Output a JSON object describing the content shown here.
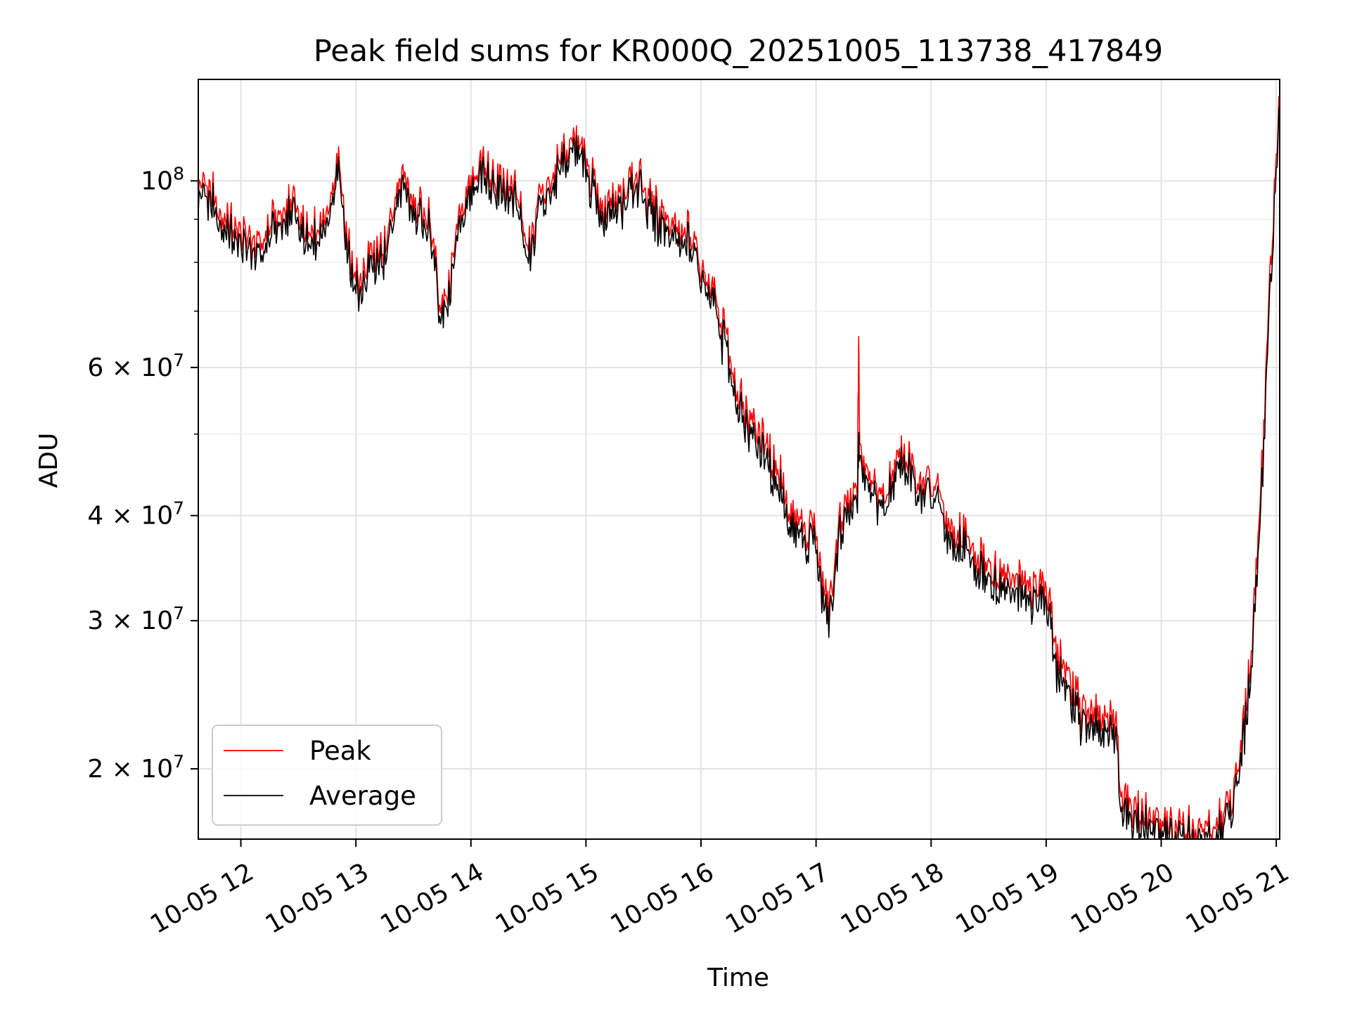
{
  "chart_data": {
    "type": "line",
    "title": "Peak field sums for KR000Q_20251005_113738_417849",
    "xlabel": "Time",
    "ylabel": "ADU",
    "y_scale": "log",
    "x_range_hours": [
      11.63,
      21.03
    ],
    "ylim": [
      16500000,
      132000000
    ],
    "x_ticks": [
      {
        "hour": 12,
        "label": "10-05 12"
      },
      {
        "hour": 13,
        "label": "10-05 13"
      },
      {
        "hour": 14,
        "label": "10-05 14"
      },
      {
        "hour": 15,
        "label": "10-05 15"
      },
      {
        "hour": 16,
        "label": "10-05 16"
      },
      {
        "hour": 17,
        "label": "10-05 17"
      },
      {
        "hour": 18,
        "label": "10-05 18"
      },
      {
        "hour": 19,
        "label": "10-05 19"
      },
      {
        "hour": 20,
        "label": "10-05 20"
      },
      {
        "hour": 21,
        "label": "10-05 21"
      }
    ],
    "y_ticks": [
      {
        "value": 100000000,
        "base": "10",
        "exp": "8"
      },
      {
        "value": 60000000,
        "base": "6 × 10",
        "exp": "7"
      },
      {
        "value": 40000000,
        "base": "4 × 10",
        "exp": "7"
      },
      {
        "value": 30000000,
        "base": "3 × 10",
        "exp": "7"
      },
      {
        "value": 20000000,
        "base": "2 × 10",
        "exp": "7"
      }
    ],
    "y_minor_ticks": [
      90000000,
      80000000,
      70000000,
      50000000
    ],
    "grid": true,
    "legend_position": "lower-left",
    "legend": [
      {
        "name": "Peak",
        "color": "#ff0000"
      },
      {
        "name": "Average",
        "color": "#000000"
      }
    ],
    "series": [
      {
        "name": "Peak",
        "color": "#ff0000",
        "x": [
          11.63,
          11.75,
          11.85,
          12.0,
          12.15,
          12.3,
          12.45,
          12.6,
          12.75,
          12.85,
          12.95,
          13.05,
          13.15,
          13.25,
          13.4,
          13.55,
          13.65,
          13.72,
          13.8,
          13.9,
          14.0,
          14.15,
          14.3,
          14.4,
          14.5,
          14.6,
          14.75,
          14.9,
          15.0,
          15.15,
          15.3,
          15.45,
          15.6,
          15.75,
          15.9,
          16.0,
          16.1,
          16.2,
          16.25,
          16.35,
          16.5,
          16.65,
          16.8,
          16.9,
          17.0,
          17.05,
          17.12,
          17.2,
          17.3,
          17.36,
          17.37,
          17.38,
          17.45,
          17.6,
          17.75,
          17.9,
          18.0,
          18.15,
          18.3,
          18.45,
          18.6,
          18.75,
          18.9,
          19.0,
          19.1,
          19.2,
          19.3,
          19.45,
          19.6,
          19.65,
          19.75,
          19.9,
          20.0,
          20.15,
          20.3,
          20.45,
          20.55,
          20.65,
          20.75,
          20.8,
          20.85,
          20.9,
          20.95,
          21.0,
          21.03
        ],
        "y": [
          99000000,
          96000000,
          90000000,
          86000000,
          84000000,
          89000000,
          93000000,
          86000000,
          91000000,
          105000000,
          80000000,
          76000000,
          82000000,
          84000000,
          100000000,
          91000000,
          88000000,
          72000000,
          74000000,
          89000000,
          100000000,
          102000000,
          98000000,
          96000000,
          82000000,
          93000000,
          103000000,
          114000000,
          104000000,
          91000000,
          95000000,
          101000000,
          92000000,
          88000000,
          86000000,
          78000000,
          74000000,
          65000000,
          61000000,
          54000000,
          50000000,
          46000000,
          40000000,
          38000000,
          39000000,
          32500000,
          31000000,
          38000000,
          42000000,
          43000000,
          64000000,
          48000000,
          44000000,
          42000000,
          47500000,
          43000000,
          44000000,
          38000000,
          37000000,
          35000000,
          34000000,
          33500000,
          32000000,
          32500000,
          27000000,
          25000000,
          23500000,
          23000000,
          22500000,
          19000000,
          17900000,
          17300000,
          17000000,
          17200000,
          16800000,
          17100000,
          17600000,
          19000000,
          24000000,
          30000000,
          38000000,
          52000000,
          78000000,
          108000000,
          120000000
        ]
      },
      {
        "name": "Average",
        "color": "#000000",
        "x": [
          11.63,
          11.75,
          11.85,
          12.0,
          12.15,
          12.3,
          12.45,
          12.6,
          12.75,
          12.85,
          12.95,
          13.05,
          13.15,
          13.25,
          13.4,
          13.55,
          13.65,
          13.72,
          13.8,
          13.9,
          14.0,
          14.15,
          14.3,
          14.4,
          14.5,
          14.6,
          14.75,
          14.9,
          15.0,
          15.15,
          15.3,
          15.45,
          15.6,
          15.75,
          15.9,
          16.0,
          16.1,
          16.2,
          16.25,
          16.35,
          16.5,
          16.65,
          16.8,
          16.9,
          17.0,
          17.05,
          17.12,
          17.2,
          17.3,
          17.36,
          17.37,
          17.38,
          17.45,
          17.6,
          17.75,
          17.9,
          18.0,
          18.15,
          18.3,
          18.45,
          18.6,
          18.75,
          18.9,
          19.0,
          19.1,
          19.2,
          19.3,
          19.45,
          19.6,
          19.65,
          19.75,
          19.9,
          20.0,
          20.15,
          20.3,
          20.45,
          20.55,
          20.65,
          20.75,
          20.8,
          20.85,
          20.9,
          20.95,
          21.0,
          21.03
        ],
        "y": [
          97000000,
          94000000,
          88000000,
          84000000,
          82000000,
          87000000,
          91000000,
          84000000,
          89000000,
          103000000,
          78000000,
          74000000,
          80000000,
          82000000,
          98000000,
          89000000,
          86000000,
          70500000,
          72500000,
          87000000,
          98000000,
          100000000,
          96000000,
          94000000,
          80000000,
          91000000,
          101000000,
          112000000,
          102000000,
          89000000,
          93000000,
          99000000,
          90000000,
          86000000,
          84000000,
          76500000,
          72500000,
          63500000,
          59500000,
          52500000,
          48500000,
          44500000,
          39000000,
          37000000,
          38000000,
          31500000,
          30000000,
          37000000,
          41000000,
          42000000,
          49000000,
          47000000,
          43000000,
          41000000,
          46500000,
          42000000,
          43000000,
          37000000,
          36000000,
          34000000,
          33000000,
          32500000,
          31000000,
          31500000,
          26000000,
          24000000,
          22800000,
          22300000,
          21800000,
          18400000,
          17400000,
          16900000,
          16700000,
          16800000,
          16500000,
          16700000,
          17200000,
          18600000,
          23300000,
          29000000,
          36500000,
          50000000,
          75000000,
          105000000,
          118000000
        ]
      }
    ]
  }
}
